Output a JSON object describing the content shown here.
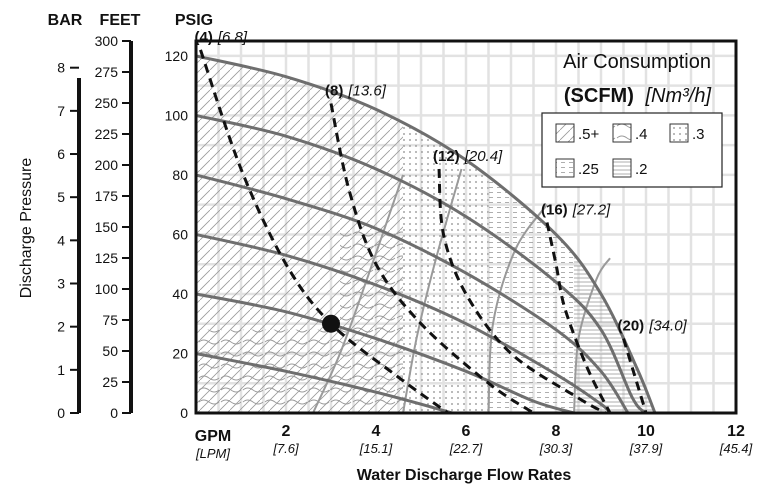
{
  "chart_data": {
    "type": "line",
    "title": "Air Consumption",
    "subtitle_bold": "(SCFM)",
    "subtitle_italic": "[Nm³/h]",
    "xlabel": "Water Discharge Flow Rates",
    "ylabel": "Discharge Pressure",
    "x_unit_label": "GPM",
    "x_unit_label_alt": "[LPM]",
    "xlim": [
      0,
      12
    ],
    "ylim": [
      0,
      125
    ],
    "x_ticks": [
      {
        "value": 2,
        "label": "2",
        "alt": "[7.6]"
      },
      {
        "value": 4,
        "label": "4",
        "alt": "[15.1]"
      },
      {
        "value": 6,
        "label": "6",
        "alt": "[22.7]"
      },
      {
        "value": 8,
        "label": "8",
        "alt": "[30.3]"
      },
      {
        "value": 10,
        "label": "10",
        "alt": "[37.9]"
      },
      {
        "value": 12,
        "label": "12",
        "alt": "[45.4]"
      }
    ],
    "axes": {
      "bar": {
        "label": "BAR",
        "ticks": [
          "0",
          "1",
          "2",
          "3",
          "4",
          "5",
          "6",
          "7",
          "8"
        ]
      },
      "feet": {
        "label": "FEET",
        "ticks": [
          "0",
          "25",
          "50",
          "75",
          "100",
          "125",
          "150",
          "175",
          "200",
          "225",
          "250",
          "275",
          "300"
        ]
      },
      "psig": {
        "label": "PSIG",
        "ticks": [
          "0",
          "20",
          "40",
          "60",
          "80",
          "100",
          "120"
        ]
      }
    },
    "performance_curves": [
      {
        "start_psig": 120,
        "points": [
          [
            0,
            120
          ],
          [
            2,
            113
          ],
          [
            4,
            102
          ],
          [
            6,
            85
          ],
          [
            8,
            60
          ],
          [
            9,
            40
          ],
          [
            9.8,
            15
          ],
          [
            10.2,
            0
          ]
        ]
      },
      {
        "start_psig": 100,
        "points": [
          [
            0,
            100
          ],
          [
            2,
            93
          ],
          [
            4,
            82
          ],
          [
            6,
            66
          ],
          [
            8,
            44
          ],
          [
            9,
            28
          ],
          [
            9.7,
            5
          ],
          [
            10,
            0
          ]
        ]
      },
      {
        "start_psig": 80,
        "points": [
          [
            0,
            80
          ],
          [
            2,
            72
          ],
          [
            4,
            62
          ],
          [
            6,
            47
          ],
          [
            8,
            28
          ],
          [
            9,
            14
          ],
          [
            9.6,
            0
          ]
        ]
      },
      {
        "start_psig": 60,
        "points": [
          [
            0,
            60
          ],
          [
            2,
            53
          ],
          [
            4,
            43
          ],
          [
            6,
            30
          ],
          [
            8,
            13
          ],
          [
            9,
            3
          ],
          [
            9.2,
            0
          ]
        ]
      },
      {
        "start_psig": 40,
        "points": [
          [
            0,
            40
          ],
          [
            2,
            34
          ],
          [
            4,
            25
          ],
          [
            6,
            14
          ],
          [
            7.5,
            4
          ],
          [
            8.4,
            0
          ]
        ]
      },
      {
        "start_psig": 20,
        "points": [
          [
            0,
            20
          ],
          [
            2,
            14
          ],
          [
            4,
            7
          ],
          [
            5.7,
            0
          ]
        ]
      }
    ],
    "air_consumption_curves": [
      {
        "label": "(4)",
        "alt": "[6.8]",
        "points": [
          [
            0.1,
            122
          ],
          [
            1,
            82
          ],
          [
            2,
            50
          ],
          [
            3,
            30
          ],
          [
            4.5,
            12
          ],
          [
            5.6,
            0
          ]
        ]
      },
      {
        "label": "(8)",
        "alt": "[13.6]",
        "points": [
          [
            3,
            104
          ],
          [
            3.4,
            75
          ],
          [
            4,
            50
          ],
          [
            5,
            30
          ],
          [
            6.5,
            10
          ],
          [
            7.5,
            0
          ]
        ]
      },
      {
        "label": "(12)",
        "alt": "[20.4]",
        "points": [
          [
            5.4,
            82
          ],
          [
            5.5,
            60
          ],
          [
            6,
            40
          ],
          [
            7,
            20
          ],
          [
            8.5,
            5
          ],
          [
            9.1,
            0
          ]
        ]
      },
      {
        "label": "(16)",
        "alt": "[27.2]",
        "points": [
          [
            7.8,
            64
          ],
          [
            8,
            50
          ],
          [
            8.2,
            35
          ],
          [
            8.7,
            15
          ],
          [
            9.2,
            0
          ]
        ]
      },
      {
        "label": "(20)",
        "alt": "[34.0]",
        "points": [
          [
            9.5,
            25
          ],
          [
            9.7,
            15
          ],
          [
            9.9,
            5
          ],
          [
            10,
            0
          ]
        ]
      }
    ],
    "operating_point": {
      "gpm": 3,
      "psig": 30
    },
    "legend": {
      "placement": "top-right",
      "items": [
        {
          "label": ".5+",
          "pattern": "diagonal"
        },
        {
          "label": ".4",
          "pattern": "wavy"
        },
        {
          "label": ".3",
          "pattern": "dots-coarse"
        },
        {
          "label": ".25",
          "pattern": "dash-fine"
        },
        {
          "label": ".2",
          "pattern": "horizontal"
        }
      ]
    },
    "grid": true,
    "colors": {
      "curve": "#6e6e6e",
      "grid": "#e2e2e2",
      "air_curve": "#111111",
      "region_line": "#9a9a9a"
    }
  }
}
